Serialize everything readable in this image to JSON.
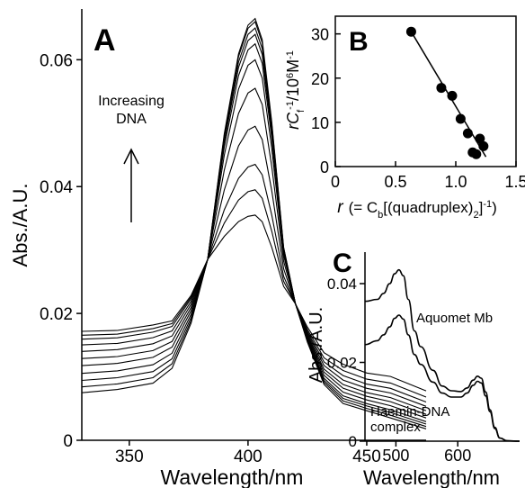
{
  "chart_data": [
    {
      "panel_label": "A",
      "type": "line",
      "xlabel": "Wavelength/nm",
      "ylabel": "Abs./A.U.",
      "xlim": [
        330,
        475
      ],
      "ylim": [
        0,
        0.068
      ],
      "xticks": [
        350,
        400,
        450
      ],
      "yticks": [
        0,
        0.02,
        0.04,
        0.06
      ],
      "ytick_labels": [
        "0",
        "0.02",
        "0.04",
        "0.06"
      ],
      "annotation": {
        "text": [
          "Increasing",
          "DNA"
        ],
        "arrow": "up"
      },
      "isosbestic_points": [
        {
          "x": 383,
          "y": 0.0285
        },
        {
          "x": 420,
          "y": 0.0215
        }
      ],
      "series": [
        {
          "peak": 0.0355,
          "shoulder": 0.016,
          "tail": 0.008
        },
        {
          "peak": 0.0395,
          "shoulder": 0.0155,
          "tail": 0.007
        },
        {
          "peak": 0.0435,
          "shoulder": 0.015,
          "tail": 0.0062
        },
        {
          "peak": 0.0495,
          "shoulder": 0.0142,
          "tail": 0.0055
        },
        {
          "peak": 0.0555,
          "shoulder": 0.0133,
          "tail": 0.0048
        },
        {
          "peak": 0.06,
          "shoulder": 0.0123,
          "tail": 0.0042
        },
        {
          "peak": 0.0625,
          "shoulder": 0.0113,
          "tail": 0.0036
        },
        {
          "peak": 0.064,
          "shoulder": 0.0102,
          "tail": 0.003
        },
        {
          "peak": 0.065,
          "shoulder": 0.0092,
          "tail": 0.0026
        },
        {
          "peak": 0.066,
          "shoulder": 0.0083,
          "tail": 0.0022
        },
        {
          "peak": 0.0665,
          "shoulder": 0.0075,
          "tail": 0.0018
        }
      ]
    },
    {
      "panel_label": "B",
      "type": "scatter",
      "xlabel": {
        "r": "r",
        "open": "(= C",
        "sub": "b",
        "mid": "[(quadruplex)",
        "sub2": "2",
        "close": "]",
        "sup": "-1",
        "end": ")"
      },
      "ylabel": {
        "rc": "rC",
        "sub": "f",
        "sup1": "-1",
        "mid": "/10",
        "sup2": "6",
        "unit": "M",
        "sup3": "-1"
      },
      "xlim": [
        0,
        1.5
      ],
      "ylim": [
        0,
        34
      ],
      "xticks": [
        0,
        0.5,
        1.0,
        1.5
      ],
      "xtick_labels": [
        "0",
        "0.5",
        "1.0",
        "1.5"
      ],
      "yticks": [
        0,
        10,
        20,
        30
      ],
      "ytick_labels": [
        "0",
        "10",
        "20",
        "30"
      ],
      "points": [
        {
          "x": 0.63,
          "y": 30.5
        },
        {
          "x": 0.88,
          "y": 17.8
        },
        {
          "x": 0.97,
          "y": 16.0
        },
        {
          "x": 1.04,
          "y": 10.8
        },
        {
          "x": 1.1,
          "y": 7.5
        },
        {
          "x": 1.14,
          "y": 3.2
        },
        {
          "x": 1.17,
          "y": 2.8
        },
        {
          "x": 1.2,
          "y": 6.3
        },
        {
          "x": 1.23,
          "y": 4.6
        }
      ],
      "fit_line": [
        {
          "x": 0.63,
          "y": 30.5
        },
        {
          "x": 1.25,
          "y": 2.2
        }
      ]
    },
    {
      "panel_label": "C",
      "type": "line",
      "xlabel": "Wavelength/nm",
      "ylabel": "Abs./A.U.",
      "xlim": [
        450,
        700
      ],
      "ylim": [
        0,
        0.048
      ],
      "xticks": [
        500,
        600
      ],
      "yticks": [
        0,
        0.02,
        0.04
      ],
      "ytick_labels": [
        "0",
        "0.02",
        "0.04"
      ],
      "series": [
        {
          "name": "Aquomet Mb",
          "points": [
            [
              450,
              0.0355
            ],
            [
              470,
              0.036
            ],
            [
              480,
              0.0375
            ],
            [
              490,
              0.04
            ],
            [
              498,
              0.0425
            ],
            [
              505,
              0.0435
            ],
            [
              512,
              0.042
            ],
            [
              520,
              0.036
            ],
            [
              530,
              0.028
            ],
            [
              540,
              0.024
            ],
            [
              560,
              0.018
            ],
            [
              575,
              0.014
            ],
            [
              590,
              0.0128
            ],
            [
              605,
              0.0126
            ],
            [
              615,
              0.0135
            ],
            [
              625,
              0.0155
            ],
            [
              632,
              0.0165
            ],
            [
              638,
              0.016
            ],
            [
              645,
              0.0125
            ],
            [
              652,
              0.008
            ],
            [
              660,
              0.0035
            ],
            [
              668,
              0.0008
            ],
            [
              680,
              0.0001
            ],
            [
              700,
              0
            ]
          ]
        },
        {
          "name": [
            "Haemin-DNA",
            "complex"
          ],
          "points": [
            [
              450,
              0.0245
            ],
            [
              470,
              0.0255
            ],
            [
              480,
              0.027
            ],
            [
              490,
              0.029
            ],
            [
              498,
              0.0312
            ],
            [
              505,
              0.032
            ],
            [
              512,
              0.031
            ],
            [
              520,
              0.027
            ],
            [
              530,
              0.022
            ],
            [
              540,
              0.0195
            ],
            [
              560,
              0.015
            ],
            [
              575,
              0.0122
            ],
            [
              590,
              0.0112
            ],
            [
              605,
              0.0112
            ],
            [
              615,
              0.0122
            ],
            [
              625,
              0.0142
            ],
            [
              632,
              0.0152
            ],
            [
              638,
              0.0148
            ],
            [
              645,
              0.0115
            ],
            [
              652,
              0.0075
            ],
            [
              660,
              0.0032
            ],
            [
              668,
              0.0008
            ],
            [
              680,
              0.0001
            ],
            [
              700,
              0
            ]
          ]
        }
      ]
    }
  ]
}
